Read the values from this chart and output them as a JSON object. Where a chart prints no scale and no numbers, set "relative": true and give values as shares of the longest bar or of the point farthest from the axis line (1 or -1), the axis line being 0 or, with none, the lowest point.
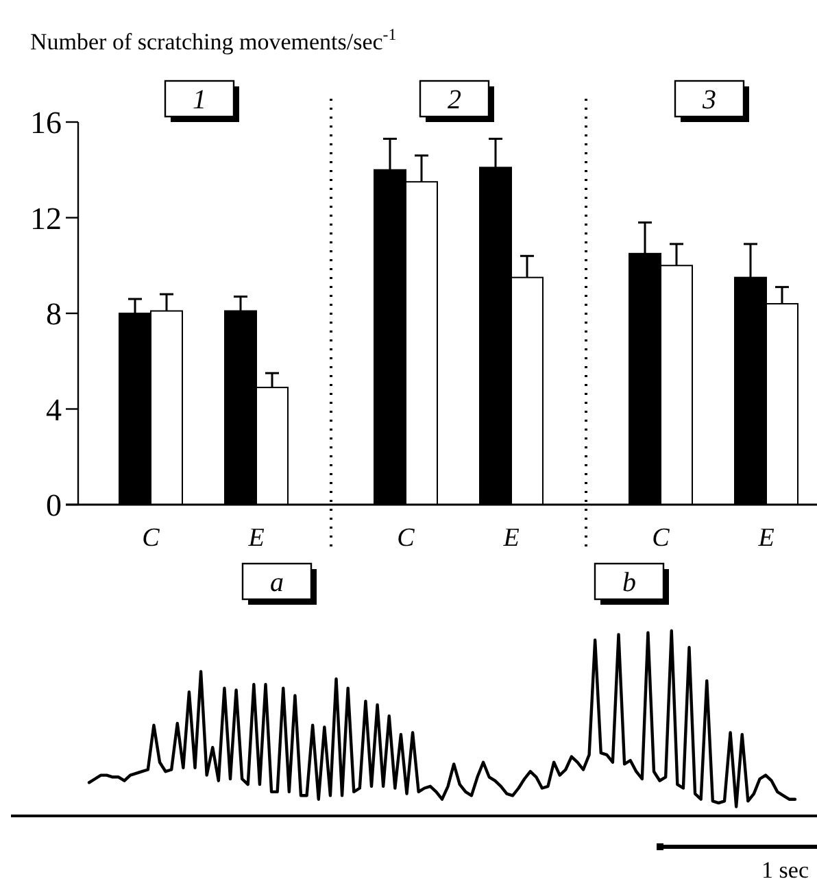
{
  "chart_data": [
    {
      "type": "bar",
      "ylabel": "Number of scratching movements/sec$^{-1}$",
      "categories": [
        "C",
        "E",
        "C",
        "E",
        "C",
        "E"
      ],
      "ylim": [
        0,
        16
      ],
      "yticks": [
        0,
        4,
        8,
        12,
        16
      ],
      "grid": false,
      "annotations": [
        "1",
        "2",
        "3"
      ],
      "series": [
        {
          "color": "#000000",
          "values": [
            8.0,
            8.1,
            14.0,
            14.1,
            10.5,
            9.5
          ],
          "errors": [
            [
              8.0,
              8.6
            ],
            [
              8.1,
              8.7
            ],
            [
              14.0,
              15.3
            ],
            [
              14.1,
              15.3
            ],
            [
              10.5,
              11.8
            ],
            [
              9.5,
              10.9
            ]
          ]
        },
        {
          "color": "#ffffff",
          "values": [
            8.1,
            4.9,
            13.5,
            9.5,
            10.0,
            8.4
          ],
          "errors": [
            [
              8.1,
              8.8
            ],
            [
              4.9,
              5.5
            ],
            [
              13.5,
              14.6
            ],
            [
              9.5,
              10.4
            ],
            [
              10.0,
              10.9
            ],
            [
              8.4,
              9.1
            ]
          ]
        }
      ]
    },
    {
      "type": "line",
      "relative": true,
      "annotations": [
        "a",
        "b",
        "1 sec"
      ],
      "categories": [
        null,
        null,
        null,
        null,
        null,
        null,
        null,
        null,
        null,
        null,
        null,
        null,
        null,
        null,
        null,
        null,
        null,
        null,
        null,
        null,
        null,
        null,
        null,
        null,
        null,
        null,
        null,
        null,
        null,
        null,
        null,
        null,
        null,
        null,
        null,
        null,
        null,
        null,
        null,
        null,
        null,
        null,
        null,
        null,
        null,
        null,
        null,
        null,
        null,
        null,
        null,
        null,
        null,
        null,
        null,
        null,
        null,
        null,
        null,
        null,
        null,
        null,
        null,
        null,
        null,
        null,
        null,
        null,
        null,
        null,
        null,
        null,
        null,
        null,
        null,
        null,
        null,
        null,
        null,
        null,
        null,
        null,
        null,
        null,
        null,
        null,
        null,
        null,
        null,
        null,
        null,
        null,
        null,
        null,
        null,
        null,
        null,
        null,
        null,
        null,
        null,
        null,
        null,
        null,
        null,
        null,
        null,
        null,
        null,
        null,
        null,
        null,
        null,
        null,
        null,
        null,
        null,
        null,
        null,
        null,
        null
      ],
      "series": [
        {
          "color": "#000000",
          "values": [
            0.18,
            0.2,
            0.22,
            0.22,
            0.21,
            0.21,
            0.19,
            0.22,
            0.23,
            0.24,
            0.25,
            0.49,
            0.29,
            0.24,
            0.25,
            0.5,
            0.26,
            0.67,
            0.26,
            0.78,
            0.22,
            0.37,
            0.19,
            0.69,
            0.2,
            0.68,
            0.2,
            0.17,
            0.71,
            0.17,
            0.71,
            0.13,
            0.13,
            0.69,
            0.13,
            0.65,
            0.11,
            0.11,
            0.49,
            0.09,
            0.48,
            0.11,
            0.74,
            0.11,
            0.69,
            0.13,
            0.15,
            0.62,
            0.16,
            0.6,
            0.16,
            0.54,
            0.15,
            0.44,
            0.12,
            0.45,
            0.13,
            0.15,
            0.16,
            0.13,
            0.09,
            0.16,
            0.28,
            0.17,
            0.13,
            0.11,
            0.21,
            0.29,
            0.21,
            0.19,
            0.16,
            0.12,
            0.11,
            0.15,
            0.2,
            0.24,
            0.21,
            0.15,
            0.16,
            0.29,
            0.22,
            0.25,
            0.32,
            0.29,
            0.25,
            0.33,
            0.95,
            0.34,
            0.33,
            0.29,
            0.98,
            0.28,
            0.3,
            0.24,
            0.2,
            0.99,
            0.24,
            0.19,
            0.21,
            1,
            0.17,
            0.15,
            0.91,
            0.12,
            0.09,
            0.73,
            0.08,
            0.07,
            0.08,
            0.45,
            0.05,
            0.44,
            0.08,
            0.12,
            0.2,
            0.22,
            0.19,
            0.13,
            0.11,
            0.09,
            0.09
          ]
        }
      ]
    }
  ]
}
